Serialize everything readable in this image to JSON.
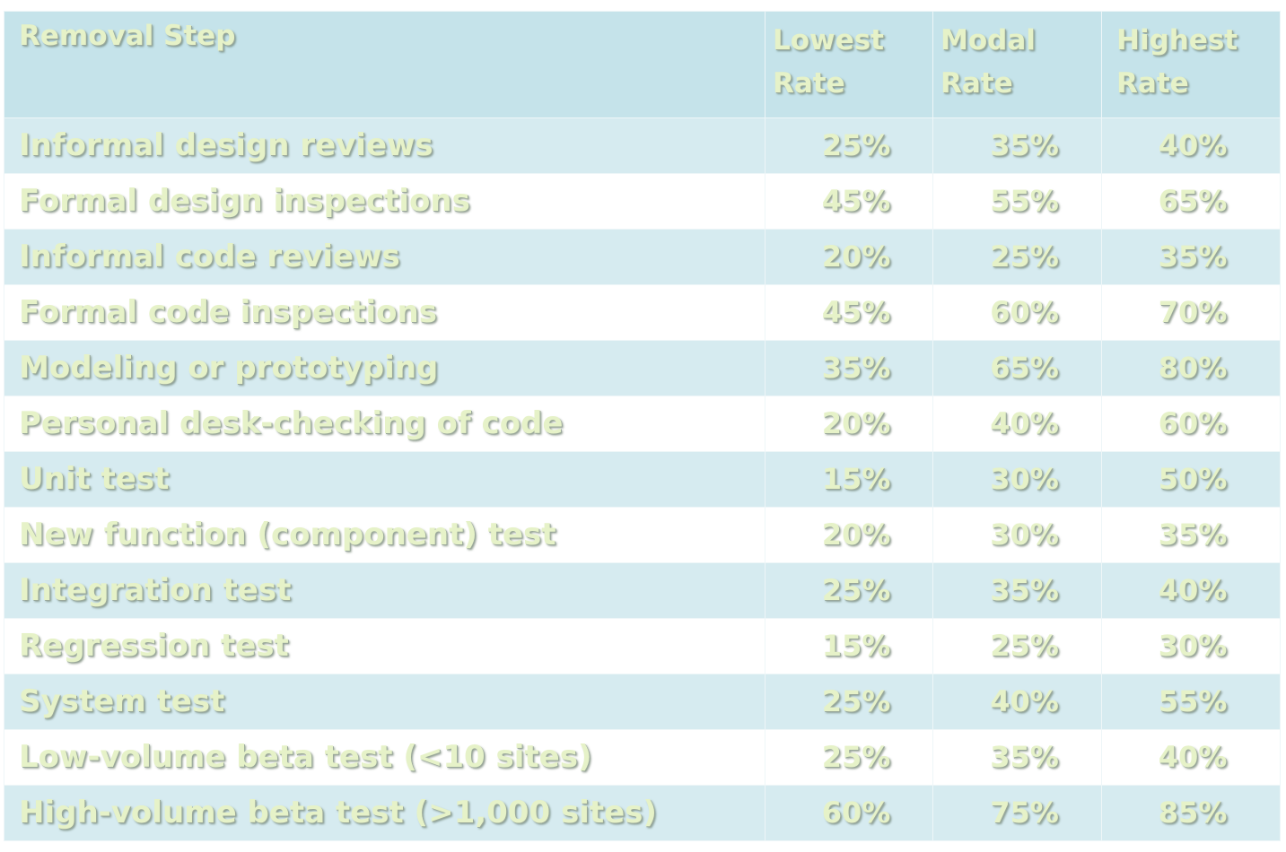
{
  "table": {
    "headers": {
      "step": "Removal Step",
      "lowest": [
        "Lowest",
        "Rate"
      ],
      "modal": [
        "Modal",
        "Rate"
      ],
      "highest": [
        "Highest",
        "Rate"
      ]
    },
    "rows": [
      {
        "step": "Informal design reviews",
        "lowest": "25%",
        "modal": "35%",
        "highest": "40%"
      },
      {
        "step": "Formal design inspections",
        "lowest": "45%",
        "modal": "55%",
        "highest": "65%"
      },
      {
        "step": "Informal code reviews",
        "lowest": "20%",
        "modal": "25%",
        "highest": "35%"
      },
      {
        "step": "Formal code inspections",
        "lowest": "45%",
        "modal": "60%",
        "highest": "70%"
      },
      {
        "step": "Modeling or prototyping",
        "lowest": "35%",
        "modal": "65%",
        "highest": "80%"
      },
      {
        "step": "Personal desk-checking of code",
        "lowest": "20%",
        "modal": "40%",
        "highest": "60%"
      },
      {
        "step": "Unit test",
        "lowest": "15%",
        "modal": "30%",
        "highest": "50%"
      },
      {
        "step": "New function (component) test",
        "lowest": "20%",
        "modal": "30%",
        "highest": "35%"
      },
      {
        "step": "Integration test",
        "lowest": "25%",
        "modal": "35%",
        "highest": "40%"
      },
      {
        "step": "Regression test",
        "lowest": "15%",
        "modal": "25%",
        "highest": "30%"
      },
      {
        "step": "System test",
        "lowest": "25%",
        "modal": "40%",
        "highest": "55%"
      },
      {
        "step": "Low-volume beta test (<10 sites)",
        "lowest": "25%",
        "modal": "35%",
        "highest": "40%"
      },
      {
        "step": "High-volume beta test (>1,000 sites)",
        "lowest": "60%",
        "modal": "75%",
        "highest": "85%"
      }
    ]
  },
  "colors": {
    "header_bg": "#c5e3ea",
    "band_bg": "#d6ebf0",
    "plain_bg": "#ffffff",
    "text": "#e6f2c8"
  }
}
